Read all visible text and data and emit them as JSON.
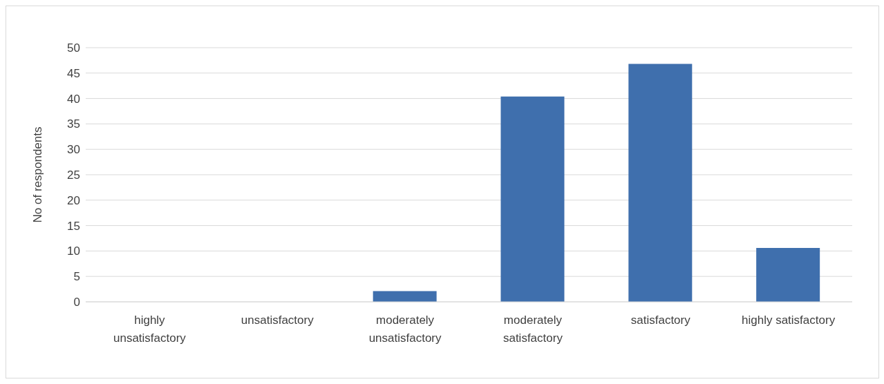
{
  "chart_data": {
    "type": "bar",
    "ylabel": "No of respondents",
    "categories": [
      "highly unsatisfactory",
      "unsatisfactory",
      "moderately unsatisfactory",
      "moderately satisfactory",
      "satisfactory",
      "highly satisfactory"
    ],
    "values": [
      0,
      0,
      2.1,
      40.4,
      46.8,
      10.6
    ],
    "color": "#3f6fad",
    "ylim": [
      0,
      50
    ],
    "yticks": [
      0,
      5,
      10,
      15,
      20,
      25,
      30,
      35,
      40,
      45,
      50
    ],
    "grid": "y"
  }
}
